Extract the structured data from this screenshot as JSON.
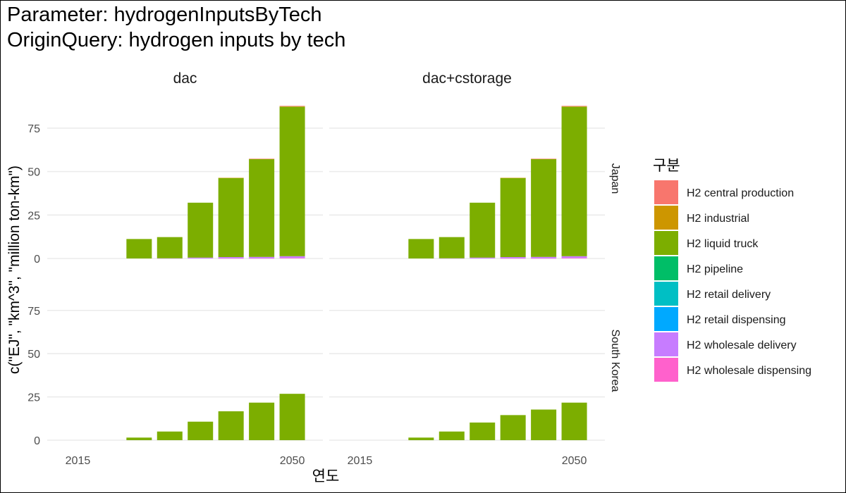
{
  "title_lines": [
    "Parameter: hydrogenInputsByTech",
    "OriginQuery: hydrogen inputs by tech"
  ],
  "chart_data": {
    "type": "bar",
    "stacked": true,
    "facet_cols": [
      "dac",
      "dac+cstorage"
    ],
    "facet_rows": [
      "Japan",
      "South Korea"
    ],
    "xlabel": "연도",
    "ylabel": "c(\"EJ\", \"km^3\", \"million ton-km\")",
    "x_ticks": [
      2015,
      2050
    ],
    "x_range": [
      2010,
      2055
    ],
    "y_ticks": [
      0,
      25,
      50,
      75
    ],
    "ylim": [
      0,
      92
    ],
    "grid": true,
    "legend_title": "구분",
    "legend_position": "right",
    "series": [
      {
        "name": "H2 central production",
        "color": "#F8766D"
      },
      {
        "name": "H2 industrial",
        "color": "#CD9600"
      },
      {
        "name": "H2 liquid truck",
        "color": "#7CAE00"
      },
      {
        "name": "H2 pipeline",
        "color": "#00BE67"
      },
      {
        "name": "H2 retail delivery",
        "color": "#00BFC4"
      },
      {
        "name": "H2 retail dispensing",
        "color": "#00A9FF"
      },
      {
        "name": "H2 wholesale delivery",
        "color": "#C77CFF"
      },
      {
        "name": "H2 wholesale dispensing",
        "color": "#FF61CC"
      }
    ],
    "x": [
      2025,
      2030,
      2035,
      2040,
      2045,
      2050
    ],
    "panels": [
      {
        "row": "Japan",
        "col": "dac",
        "stacks": {
          "H2 central production": [
            0,
            0,
            0,
            0,
            0.1,
            0.3
          ],
          "H2 industrial": [
            0,
            0,
            0,
            0.1,
            0.1,
            0.2
          ],
          "H2 liquid truck": [
            11.2,
            12.2,
            31.6,
            45.5,
            56.3,
            86.0
          ],
          "H2 wholesale delivery": [
            0,
            0.1,
            0.5,
            0.7,
            0.8,
            1.0
          ],
          "H2 wholesale dispensing": [
            0,
            0,
            0,
            0.1,
            0.1,
            0.3
          ]
        }
      },
      {
        "row": "Japan",
        "col": "dac+cstorage",
        "stacks": {
          "H2 central production": [
            0,
            0,
            0,
            0,
            0.1,
            0.3
          ],
          "H2 industrial": [
            0,
            0,
            0,
            0.1,
            0.1,
            0.2
          ],
          "H2 liquid truck": [
            11.2,
            12.2,
            31.6,
            45.5,
            56.3,
            86.0
          ],
          "H2 wholesale delivery": [
            0,
            0.1,
            0.5,
            0.7,
            0.8,
            1.0
          ],
          "H2 wholesale dispensing": [
            0,
            0,
            0,
            0.1,
            0.1,
            0.3
          ]
        }
      },
      {
        "row": "South Korea",
        "col": "dac",
        "stacks": {
          "H2 liquid truck": [
            1.5,
            5.0,
            10.7,
            16.7,
            21.7,
            26.8
          ]
        }
      },
      {
        "row": "South Korea",
        "col": "dac+cstorage",
        "stacks": {
          "H2 liquid truck": [
            1.5,
            5.0,
            10.2,
            14.5,
            17.7,
            21.7
          ]
        }
      }
    ]
  }
}
